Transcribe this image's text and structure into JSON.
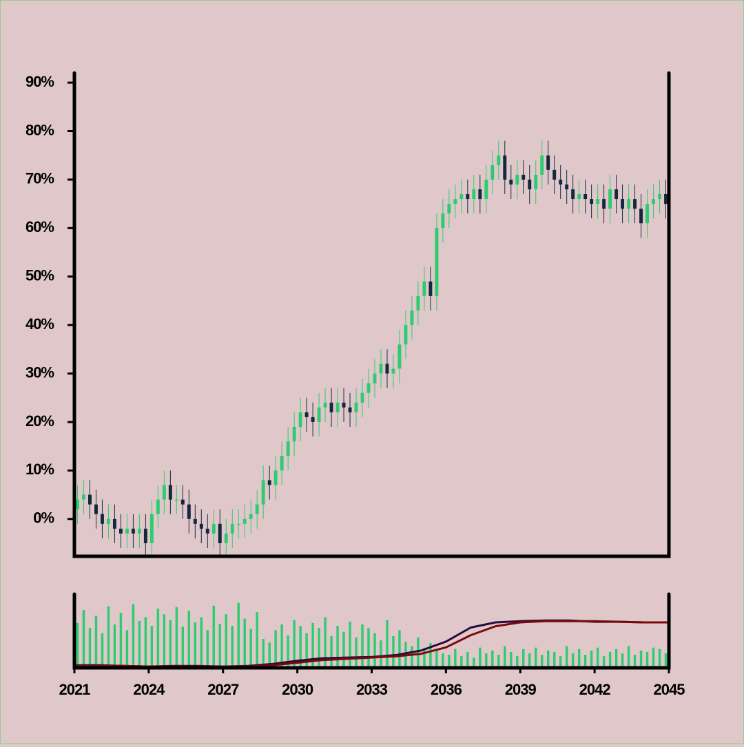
{
  "chart_data": {
    "type": "candlestick",
    "x": [
      2021.125,
      2021.375,
      2021.625,
      2021.875,
      2022.125,
      2022.375,
      2022.625,
      2022.875,
      2023.125,
      2023.375,
      2023.625,
      2023.875,
      2024.125,
      2024.375,
      2024.625,
      2024.875,
      2025.125,
      2025.375,
      2025.625,
      2025.875,
      2026.125,
      2026.375,
      2026.625,
      2026.875,
      2027.125,
      2027.375,
      2027.625,
      2027.875,
      2028.125,
      2028.375,
      2028.625,
      2028.875,
      2029.125,
      2029.375,
      2029.625,
      2029.875,
      2030.125,
      2030.375,
      2030.625,
      2030.875,
      2031.125,
      2031.375,
      2031.625,
      2031.875,
      2032.125,
      2032.375,
      2032.625,
      2032.875,
      2033.125,
      2033.375,
      2033.625,
      2033.875,
      2034.125,
      2034.375,
      2034.625,
      2034.875,
      2035.125,
      2035.375,
      2035.625,
      2035.875,
      2036.125,
      2036.375,
      2036.625,
      2036.875,
      2037.125,
      2037.375,
      2037.625,
      2037.875,
      2038.125,
      2038.375,
      2038.625,
      2038.875,
      2039.125,
      2039.375,
      2039.625,
      2039.875,
      2040.125,
      2040.375,
      2040.625,
      2040.875,
      2041.125,
      2041.375,
      2041.625,
      2041.875,
      2042.125,
      2042.375,
      2042.625,
      2042.875,
      2043.125,
      2043.375,
      2043.625,
      2043.875,
      2044.125,
      2044.375,
      2044.625,
      2044.875
    ],
    "open": [
      2,
      4,
      5,
      3,
      1,
      -1,
      0,
      -2,
      -3,
      -2,
      -3,
      -2,
      -5,
      1,
      4,
      7,
      4,
      4,
      3,
      0,
      -1,
      -2,
      -3,
      -1,
      -5,
      -3,
      -1,
      -1,
      0,
      1,
      3,
      8,
      7,
      10,
      13,
      16,
      19,
      22,
      21,
      20,
      23,
      24,
      22,
      24,
      23,
      22,
      24,
      26,
      28,
      30,
      32,
      30,
      31,
      36,
      40,
      43,
      46,
      49,
      46,
      60,
      63,
      65,
      66,
      67,
      66,
      68,
      66,
      70,
      73,
      75,
      70,
      69,
      71,
      70,
      68,
      71,
      75,
      72,
      70,
      69,
      68,
      66,
      67,
      66,
      65,
      66,
      64,
      68,
      66,
      64,
      66,
      64,
      61,
      65,
      66,
      67
    ],
    "high": [
      7,
      8,
      8,
      6,
      4,
      3,
      3,
      1,
      1,
      1,
      1,
      1,
      4,
      7,
      10,
      10,
      7,
      7,
      6,
      3,
      2,
      1,
      2,
      2,
      0,
      2,
      2,
      3,
      4,
      6,
      11,
      11,
      13,
      16,
      19,
      22,
      25,
      25,
      24,
      26,
      27,
      27,
      27,
      27,
      26,
      27,
      29,
      31,
      33,
      35,
      35,
      34,
      39,
      43,
      46,
      49,
      52,
      52,
      63,
      66,
      68,
      69,
      70,
      70,
      71,
      71,
      73,
      76,
      78,
      78,
      73,
      74,
      74,
      73,
      74,
      78,
      78,
      75,
      73,
      72,
      71,
      70,
      70,
      69,
      69,
      69,
      71,
      71,
      69,
      69,
      69,
      67,
      68,
      69,
      70,
      70
    ],
    "low": [
      -1,
      1,
      0,
      -2,
      -4,
      -4,
      -5,
      -6,
      -6,
      -6,
      -6,
      -8,
      -8,
      -2,
      1,
      1,
      1,
      0,
      -3,
      -4,
      -5,
      -6,
      -6,
      -8,
      -8,
      -6,
      -4,
      -4,
      -3,
      -2,
      0,
      4,
      4,
      7,
      10,
      13,
      16,
      18,
      17,
      17,
      20,
      19,
      19,
      20,
      19,
      19,
      21,
      23,
      25,
      27,
      27,
      27,
      28,
      33,
      37,
      40,
      43,
      43,
      43,
      57,
      60,
      62,
      63,
      63,
      63,
      63,
      63,
      67,
      70,
      67,
      66,
      66,
      67,
      65,
      65,
      68,
      69,
      67,
      66,
      65,
      63,
      63,
      63,
      62,
      62,
      61,
      61,
      63,
      61,
      61,
      61,
      58,
      58,
      62,
      63,
      62
    ],
    "close": [
      4,
      5,
      3,
      1,
      -1,
      0,
      -2,
      -3,
      -2,
      -3,
      -2,
      -5,
      1,
      4,
      7,
      4,
      4,
      3,
      0,
      -1,
      -2,
      -3,
      -1,
      -5,
      -3,
      -1,
      -1,
      0,
      1,
      3,
      8,
      7,
      10,
      13,
      16,
      19,
      22,
      21,
      20,
      23,
      24,
      22,
      24,
      23,
      22,
      24,
      26,
      28,
      30,
      32,
      30,
      31,
      36,
      40,
      43,
      46,
      49,
      46,
      60,
      63,
      65,
      66,
      67,
      66,
      68,
      66,
      70,
      73,
      75,
      70,
      69,
      71,
      70,
      68,
      71,
      75,
      72,
      70,
      69,
      68,
      66,
      67,
      66,
      65,
      66,
      64,
      68,
      66,
      64,
      66,
      64,
      61,
      65,
      66,
      67,
      65
    ],
    "volume": [
      62,
      80,
      55,
      72,
      48,
      85,
      60,
      76,
      52,
      88,
      65,
      70,
      58,
      82,
      74,
      66,
      84,
      57,
      79,
      63,
      70,
      52,
      86,
      61,
      74,
      58,
      90,
      68,
      54,
      77,
      40,
      35,
      52,
      60,
      45,
      66,
      58,
      48,
      62,
      55,
      70,
      44,
      58,
      50,
      64,
      42,
      60,
      55,
      48,
      38,
      66,
      44,
      52,
      36,
      30,
      42,
      28,
      34,
      24,
      20,
      18,
      26,
      16,
      22,
      14,
      28,
      20,
      24,
      18,
      30,
      22,
      16,
      26,
      20,
      28,
      18,
      24,
      22,
      16,
      30,
      20,
      26,
      18,
      24,
      28,
      16,
      22,
      26,
      20,
      30,
      18,
      24,
      22,
      28,
      26,
      20
    ],
    "up_color": "#2ecc71",
    "down_color": "#14283f",
    "volume_color": "#2ecc71",
    "lines_x": [
      2021,
      2022,
      2023,
      2024,
      2025,
      2026,
      2027,
      2028,
      2029,
      2030,
      2031,
      2032,
      2033,
      2034,
      2035,
      2036,
      2037,
      2038,
      2039,
      2040,
      2041,
      2042,
      2043,
      2044,
      2045
    ],
    "lines": [
      {
        "color": "#2a0a3a",
        "values": [
          1,
          1,
          0,
          -1,
          0,
          0,
          -1,
          0,
          3,
          8,
          12,
          13,
          14,
          17,
          24,
          38,
          60,
          68,
          70,
          71,
          71,
          69,
          69,
          68,
          68
        ]
      },
      {
        "color": "#7a0a0a",
        "values": [
          0,
          0,
          0,
          -1,
          -1,
          -1,
          -1,
          -1,
          1,
          5,
          9,
          11,
          13,
          15,
          19,
          29,
          48,
          62,
          68,
          70,
          70,
          70,
          69,
          68,
          68
        ]
      }
    ],
    "xlim": [
      2021,
      2045
    ],
    "xticks": [
      2021,
      2024,
      2027,
      2030,
      2033,
      2036,
      2039,
      2042,
      2045
    ],
    "ylim": [
      -7.7,
      92
    ],
    "yticks": [
      {
        "value": 0,
        "label": "0%"
      },
      {
        "value": 10,
        "label": "10%"
      },
      {
        "value": 20,
        "label": "20%"
      },
      {
        "value": 30,
        "label": "30%"
      },
      {
        "value": 40,
        "label": "40%"
      },
      {
        "value": 50,
        "label": "50%"
      },
      {
        "value": 60,
        "label": "60%"
      },
      {
        "value": 70,
        "label": "70%"
      },
      {
        "value": 80,
        "label": "80%"
      },
      {
        "value": 90,
        "label": "90%"
      }
    ],
    "volume_ylim": [
      0,
      100
    ],
    "lines_ylim": [
      -3,
      110
    ]
  }
}
